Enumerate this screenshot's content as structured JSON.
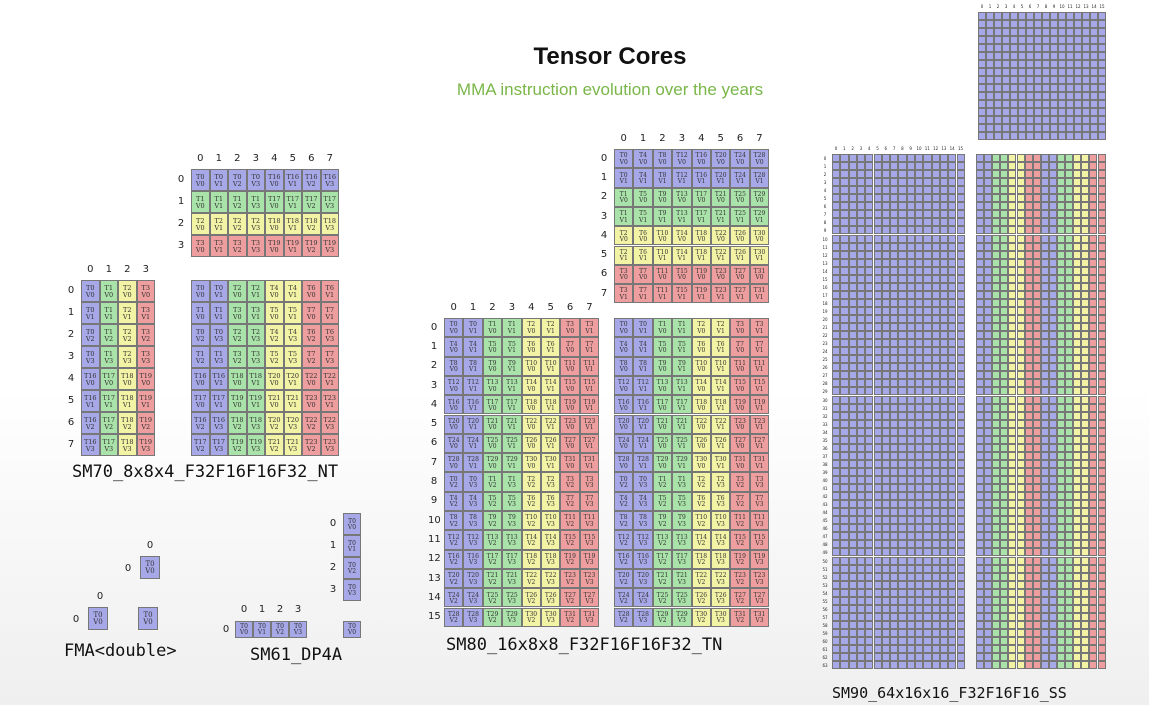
{
  "title": "Tensor Cores",
  "subtitle": "MMA instruction evolution over the years",
  "palette": {
    "blue": "#a7a8e8",
    "green": "#a9e3a9",
    "yellow": "#f3f3a6",
    "red": "#ee9e9e",
    "border": "#777777"
  },
  "captions": {
    "sm70": "SM70_8x8x4_F32F16F16F32_NT",
    "sm80": "SM80_16x8x8_F32F16F16F32_TN",
    "sm90": "SM90_64x16x16_F32F16F16_SS",
    "fma": "FMA<double>",
    "sm61": "SM61_DP4A"
  },
  "fma": {
    "b": {
      "rows": [
        [
          {
            "t": "T0",
            "v": "V0"
          }
        ]
      ]
    },
    "a": {
      "rows": [
        [
          {
            "t": "T0",
            "v": "V0"
          }
        ]
      ]
    },
    "c": {
      "rows": [
        [
          {
            "t": "T0",
            "v": "V0"
          }
        ]
      ]
    }
  },
  "sm61": {
    "a": [
      {
        "t": "T0",
        "v": "V0"
      },
      {
        "t": "T0",
        "v": "V1"
      },
      {
        "t": "T0",
        "v": "V2"
      },
      {
        "t": "T0",
        "v": "V3"
      }
    ],
    "b": [
      {
        "t": "T0",
        "v": "V0"
      },
      {
        "t": "T0",
        "v": "V1"
      },
      {
        "t": "T0",
        "v": "V2"
      },
      {
        "t": "T0",
        "v": "V3"
      }
    ],
    "c": [
      {
        "t": "T0",
        "v": "V0"
      }
    ]
  }
}
